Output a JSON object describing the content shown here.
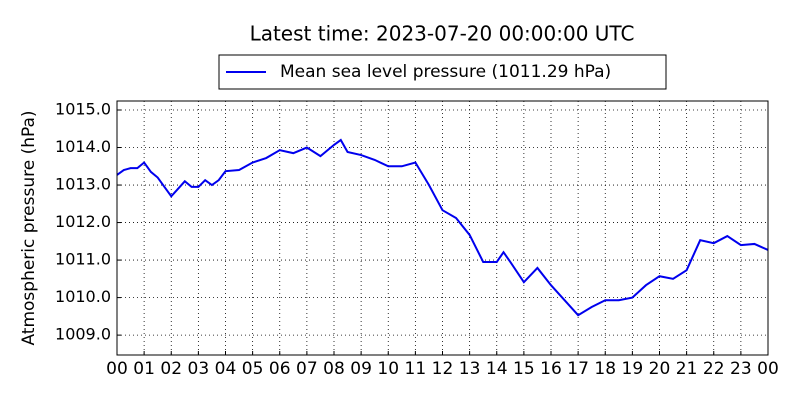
{
  "chart_data": {
    "type": "line",
    "title": "Latest time: 2023-07-20 00:00:00 UTC",
    "y_label": "Atmospheric pressure (hPa)",
    "x": [
      0,
      0.25,
      0.5,
      0.75,
      1,
      1.25,
      1.5,
      1.75,
      2,
      2.25,
      2.5,
      2.75,
      3,
      3.25,
      3.5,
      3.75,
      4,
      4.5,
      5,
      5.5,
      6,
      6.5,
      7,
      7.5,
      8,
      8.25,
      8.5,
      9,
      9.5,
      10,
      10.5,
      11,
      11.5,
      12,
      12.5,
      13,
      13.5,
      14,
      14.25,
      14.5,
      15,
      15.5,
      16,
      16.5,
      17,
      17.5,
      18,
      18.5,
      19,
      19.5,
      20,
      20.5,
      21,
      21.5,
      22,
      22.5,
      23,
      23.5,
      24
    ],
    "series": [
      {
        "name": "Mean sea level pressure (1011.29 hPa)",
        "color": "#0000ee",
        "values": [
          1013.27,
          1013.4,
          1013.45,
          1013.45,
          1013.6,
          1013.35,
          1013.2,
          1012.95,
          1012.7,
          1012.9,
          1013.1,
          1012.95,
          1012.95,
          1013.13,
          1013.0,
          1013.13,
          1013.37,
          1013.4,
          1013.6,
          1013.72,
          1013.93,
          1013.85,
          1014.0,
          1013.77,
          1014.07,
          1014.2,
          1013.88,
          1013.8,
          1013.67,
          1013.5,
          1013.5,
          1013.6,
          1013.0,
          1012.33,
          1012.12,
          1011.67,
          1010.95,
          1010.95,
          1011.21,
          1010.95,
          1010.41,
          1010.79,
          1010.33,
          1009.93,
          1009.53,
          1009.75,
          1009.93,
          1009.93,
          1010.0,
          1010.33,
          1010.57,
          1010.5,
          1010.73,
          1011.53,
          1011.45,
          1011.64,
          1011.4,
          1011.43,
          1011.27
        ]
      }
    ],
    "xlim": [
      0,
      24
    ],
    "xticks": [
      {
        "value": 0,
        "label": "00"
      },
      {
        "value": 1,
        "label": "01"
      },
      {
        "value": 2,
        "label": "02"
      },
      {
        "value": 3,
        "label": "03"
      },
      {
        "value": 4,
        "label": "04"
      },
      {
        "value": 5,
        "label": "05"
      },
      {
        "value": 6,
        "label": "06"
      },
      {
        "value": 7,
        "label": "07"
      },
      {
        "value": 8,
        "label": "08"
      },
      {
        "value": 9,
        "label": "09"
      },
      {
        "value": 10,
        "label": "10"
      },
      {
        "value": 11,
        "label": "11"
      },
      {
        "value": 12,
        "label": "12"
      },
      {
        "value": 13,
        "label": "13"
      },
      {
        "value": 14,
        "label": "14"
      },
      {
        "value": 15,
        "label": "15"
      },
      {
        "value": 16,
        "label": "16"
      },
      {
        "value": 17,
        "label": "17"
      },
      {
        "value": 18,
        "label": "18"
      },
      {
        "value": 19,
        "label": "19"
      },
      {
        "value": 20,
        "label": "20"
      },
      {
        "value": 21,
        "label": "21"
      },
      {
        "value": 22,
        "label": "22"
      },
      {
        "value": 23,
        "label": "23"
      },
      {
        "value": 24,
        "label": "00"
      }
    ],
    "ylim": [
      1008.47,
      1015.24
    ],
    "yticks": [
      {
        "value": 1009,
        "label": "1009.0"
      },
      {
        "value": 1010,
        "label": "1010.0"
      },
      {
        "value": 1011,
        "label": "1011.0"
      },
      {
        "value": 1012,
        "label": "1012.0"
      },
      {
        "value": 1013,
        "label": "1013.0"
      },
      {
        "value": 1014,
        "label": "1014.0"
      },
      {
        "value": 1015,
        "label": "1015.0"
      }
    ],
    "grid": true,
    "legend": "top"
  }
}
